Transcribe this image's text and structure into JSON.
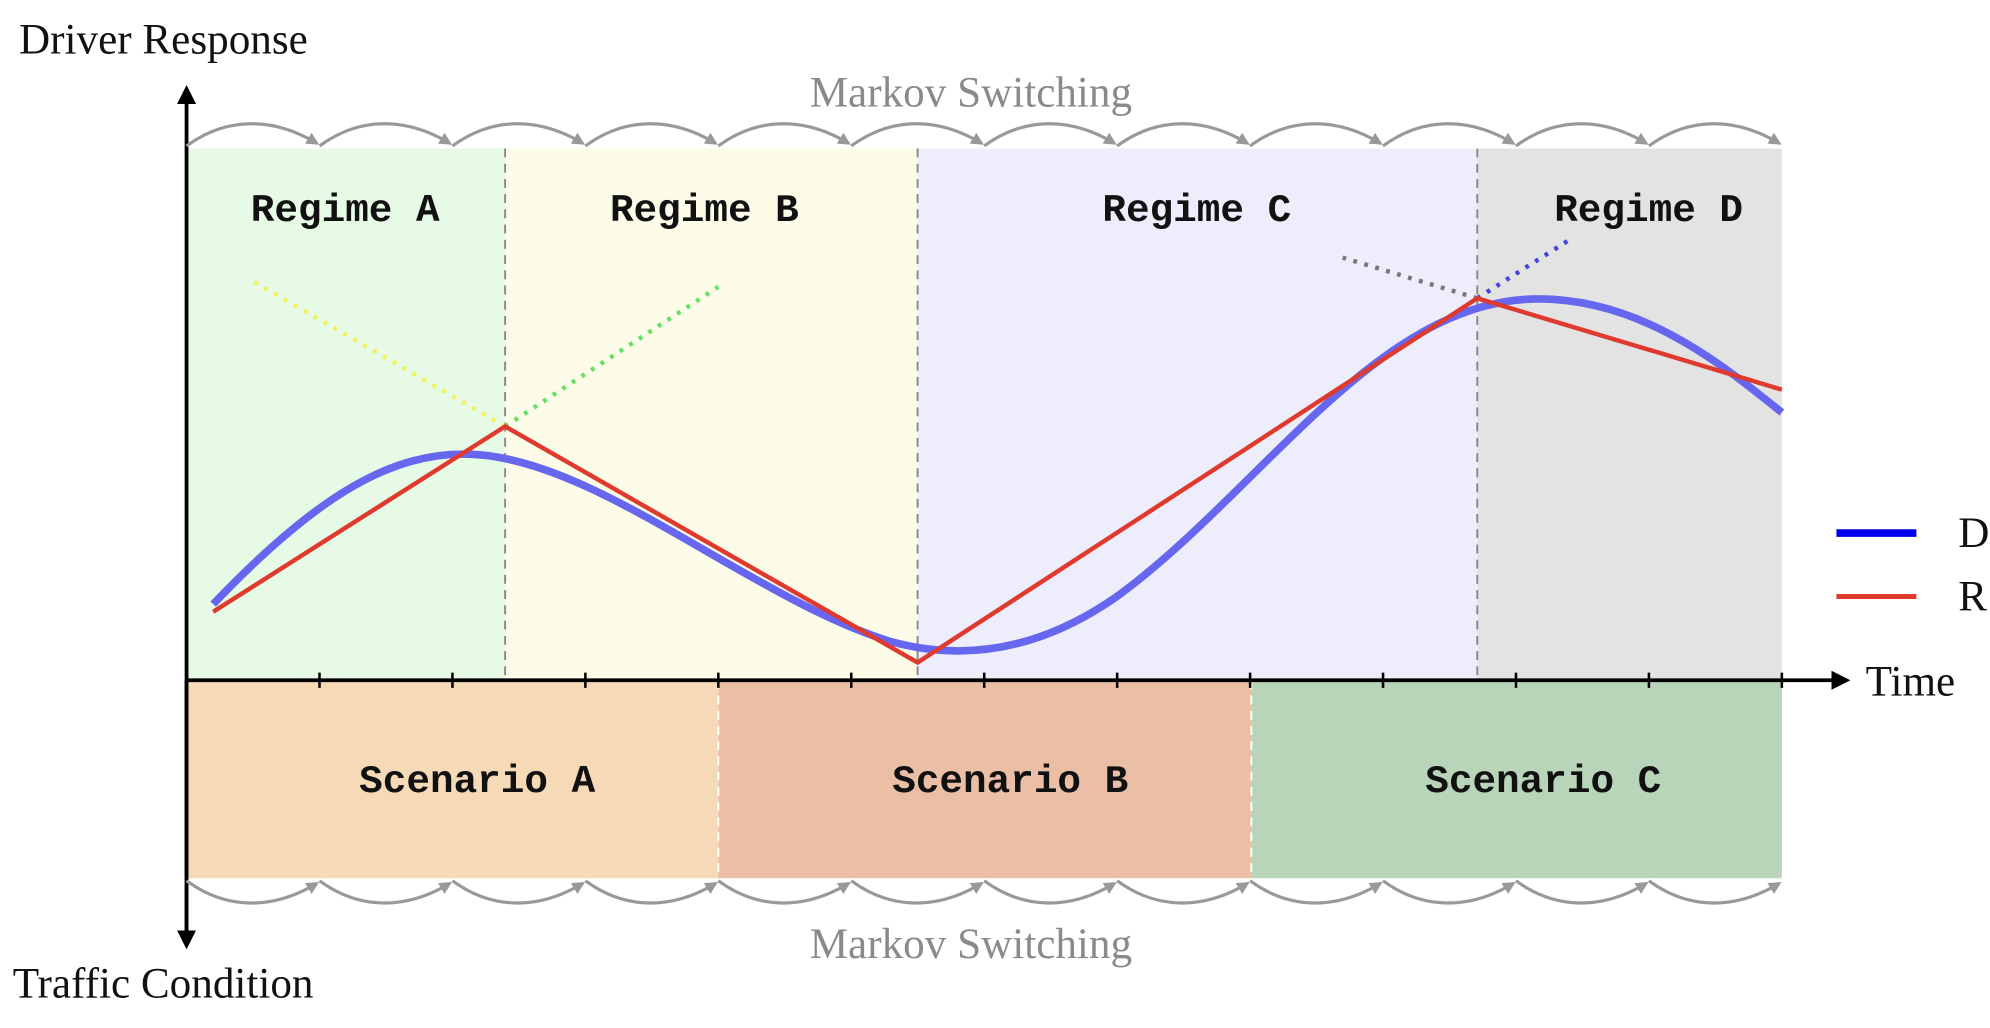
{
  "axes": {
    "y_top": "Driver Response",
    "y_bottom": "Traffic Condition",
    "x": "Time"
  },
  "markov": {
    "top": "Markov Switching",
    "bottom": "Markov Switching"
  },
  "regimes": [
    "Regime A",
    "Regime B",
    "Regime C",
    "Regime D"
  ],
  "scenarios": [
    "Scenario A",
    "Scenario B",
    "Scenario C"
  ],
  "legend": [
    "D",
    "R"
  ]
}
